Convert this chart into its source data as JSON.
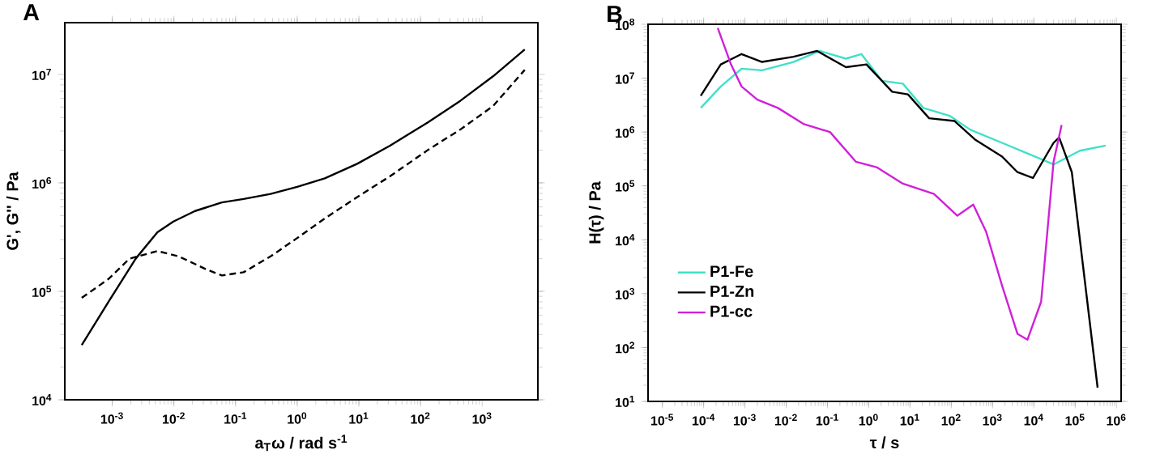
{
  "chart_data": [
    {
      "type": "line",
      "title": "A",
      "xlabel": "a$_{T}$ω / rad s$^{-1}$",
      "ylabel": "G', G'' / Pa",
      "log": "xy",
      "marker": "none",
      "grid": false,
      "xlim": [
        0.00017,
        8000
      ],
      "ylim": [
        10000,
        30000000
      ],
      "xticks": [
        {
          "value": 0.001,
          "label": "10$^{-3}$"
        },
        {
          "value": 0.01,
          "label": "10$^{-2}$"
        },
        {
          "value": 0.1,
          "label": "10$^{-1}$"
        },
        {
          "value": 1,
          "label": "10$^{0}$"
        },
        {
          "value": 10,
          "label": "10$^{1}$"
        },
        {
          "value": 100,
          "label": "10$^{2}$"
        },
        {
          "value": 1000,
          "label": "10$^{3}$"
        }
      ],
      "yticks": [
        {
          "value": 10000,
          "label": "10$^{4}$"
        },
        {
          "value": 100000,
          "label": "10$^{5}$"
        },
        {
          "value": 1000000,
          "label": "10$^{6}$"
        },
        {
          "value": 10000000,
          "label": "10$^{7}$"
        }
      ],
      "series": [
        {
          "color": "#000000",
          "line_style": "solid",
          "x": [
            0.00032,
            0.00087,
            0.0024,
            0.0054,
            0.0098,
            0.022,
            0.06,
            0.135,
            0.37,
            1,
            2.8,
            9.4,
            32,
            130,
            440,
            1500,
            4900
          ],
          "values": [
            32000,
            80000,
            200000,
            350000,
            440000,
            550000,
            660000,
            710000,
            790000,
            920000,
            1100000,
            1500000,
            2200000,
            3600000,
            5700000,
            9600000,
            17000000
          ]
        },
        {
          "color": "#000000",
          "line_style": "dashed",
          "x": [
            0.00032,
            0.00087,
            0.0019,
            0.0054,
            0.012,
            0.033,
            0.06,
            0.135,
            0.37,
            1,
            2.8,
            9.4,
            32,
            130,
            440,
            1500,
            4900
          ],
          "values": [
            87000,
            130000,
            200000,
            235000,
            210000,
            160000,
            140000,
            150000,
            210000,
            310000,
            470000,
            740000,
            1150000,
            2000000,
            3100000,
            5100000,
            11000000
          ]
        }
      ]
    },
    {
      "type": "line",
      "title": "B",
      "xlabel": "τ / s",
      "ylabel": "H(τ) / Pa",
      "log": "xy",
      "marker": "none",
      "grid": false,
      "legend": "bottom left",
      "xlim": [
        4.5e-06,
        1300000
      ],
      "ylim": [
        10,
        100000000
      ],
      "xticks": [
        {
          "value": 1e-05,
          "label": "10$^{-5}$"
        },
        {
          "value": 0.0001,
          "label": "10$^{-4}$"
        },
        {
          "value": 0.001,
          "label": "10$^{-3}$"
        },
        {
          "value": 0.01,
          "label": "10$^{-2}$"
        },
        {
          "value": 0.1,
          "label": "10$^{-1}$"
        },
        {
          "value": 1,
          "label": "10$^{0}$"
        },
        {
          "value": 10,
          "label": "10$^{1}$"
        },
        {
          "value": 100,
          "label": "10$^{2}$"
        },
        {
          "value": 1000,
          "label": "10$^{3}$"
        },
        {
          "value": 10000,
          "label": "10$^{4}$"
        },
        {
          "value": 100000,
          "label": "10$^{5}$"
        },
        {
          "value": 1000000,
          "label": "10$^{6}$"
        }
      ],
      "yticks": [
        {
          "value": 10,
          "label": "10$^{1}$"
        },
        {
          "value": 100,
          "label": "10$^{2}$"
        },
        {
          "value": 1000,
          "label": "10$^{3}$"
        },
        {
          "value": 10000,
          "label": "10$^{4}$"
        },
        {
          "value": 100000,
          "label": "10$^{5}$"
        },
        {
          "value": 1000000,
          "label": "10$^{6}$"
        },
        {
          "value": 10000000,
          "label": "10$^{7}$"
        },
        {
          "value": 100000000,
          "label": "10$^{8}$"
        }
      ],
      "series": [
        {
          "name": "P1-Fe",
          "color": "#40e0c8",
          "x": [
            8.5e-05,
            0.00026,
            0.00083,
            0.0026,
            0.015,
            0.065,
            0.28,
            0.66,
            2.1,
            6.7,
            21,
            91,
            290,
            1700,
            7000,
            30000,
            130000,
            550000
          ],
          "values": [
            2800000,
            7000000,
            15000000,
            14000000,
            20000000,
            32000000,
            23000000,
            28000000,
            8900000,
            7900000,
            2800000,
            2000000,
            1100000,
            630000,
            400000,
            250000,
            450000,
            560000
          ]
        },
        {
          "name": "P1-Zn",
          "color": "#000000",
          "x": [
            8.5e-05,
            0.00026,
            0.00083,
            0.0026,
            0.015,
            0.056,
            0.28,
            0.88,
            3.7,
            8.9,
            29,
            120,
            390,
            1700,
            4000,
            9500,
            30000,
            41000,
            83000,
            350000
          ],
          "values": [
            4700000,
            18000000,
            28000000,
            20000000,
            25000000,
            32000000,
            16000000,
            18000000,
            5600000,
            5000000,
            1800000,
            1600000,
            710000,
            350000,
            180000,
            140000,
            630000,
            790000,
            180000,
            18
          ]
        },
        {
          "name": "P1-cc",
          "color": "#d020d8",
          "x": [
            0.00022,
            0.00046,
            0.00083,
            0.002,
            0.0063,
            0.027,
            0.115,
            0.49,
            1.6,
            6.7,
            38,
            140,
            340,
            700,
            1700,
            4000,
            7000,
            15000,
            30000,
            47000
          ],
          "values": [
            85000000,
            18000000,
            7000000,
            4000000,
            2800000,
            1400000,
            1000000,
            280000,
            220000,
            110000,
            71000,
            28000,
            45000,
            14000,
            1400,
            180,
            140,
            710,
            280000,
            1350000
          ]
        }
      ]
    }
  ]
}
